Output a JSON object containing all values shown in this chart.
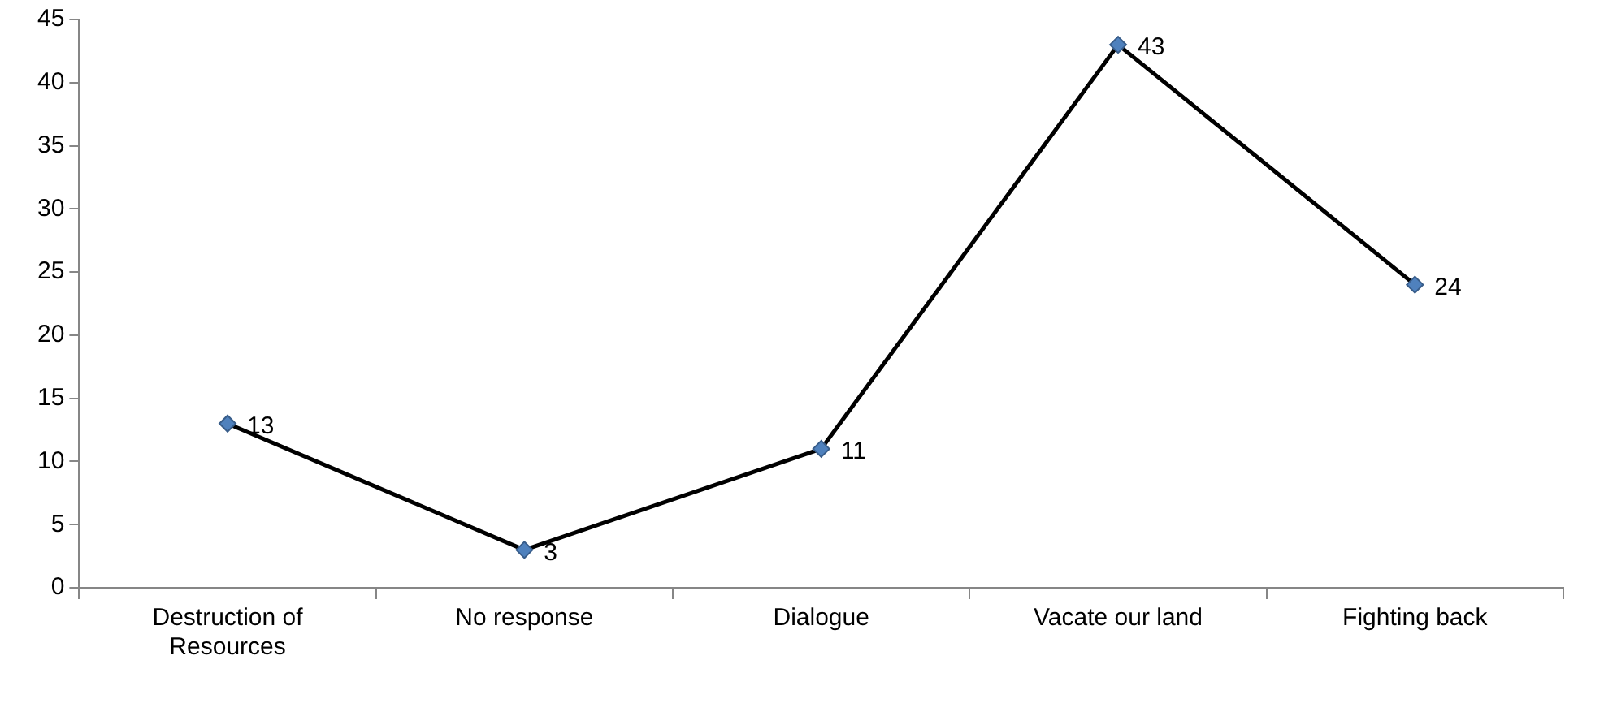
{
  "chart_data": {
    "type": "line",
    "categories": [
      "Destruction of Resources",
      "No response",
      "Dialogue",
      "Vacate our land",
      "Fighting back"
    ],
    "series": [
      {
        "color": "#000000",
        "values": [
          13,
          3,
          11,
          43,
          24
        ]
      }
    ],
    "marker": "diamond",
    "line_style": "solid",
    "data_labels": true,
    "grid": false,
    "legend": false,
    "ylim": [
      0,
      45
    ],
    "yticks": [
      0,
      5,
      10,
      15,
      20,
      25,
      30,
      35,
      40,
      45
    ]
  }
}
